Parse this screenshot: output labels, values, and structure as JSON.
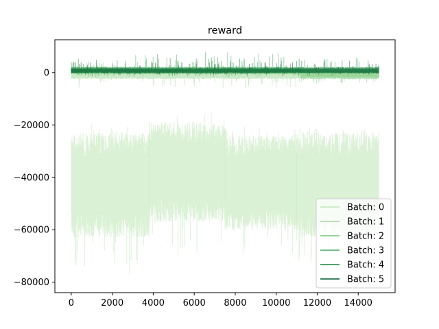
{
  "chart_data": {
    "type": "line",
    "title": "reward",
    "xlabel": "",
    "ylabel": "",
    "xlim": [
      -800,
      15800
    ],
    "ylim": [
      -84000,
      12500
    ],
    "x_ticks": [
      0,
      2000,
      4000,
      6000,
      8000,
      10000,
      12000,
      14000
    ],
    "x_tick_labels": [
      "0",
      "2000",
      "4000",
      "6000",
      "8000",
      "10000",
      "12000",
      "14000"
    ],
    "y_ticks": [
      0,
      -20000,
      -40000,
      -60000,
      -80000
    ],
    "y_tick_labels": [
      "0",
      "−20000",
      "−40000",
      "−60000",
      "−80000"
    ],
    "grid": false,
    "legend_placement": "lower-right",
    "x_range": [
      0,
      15000
    ],
    "series": [
      {
        "name": "Batch: 0",
        "color": "#c7e9c0",
        "opacity": 0.65,
        "band_segments": [
          {
            "x": [
              0,
              3800
            ],
            "upper": -23000,
            "lower": -63000,
            "spike_max": -19000,
            "spike_min": -79500
          },
          {
            "x": [
              3800,
              7500
            ],
            "upper": -19000,
            "lower": -57000,
            "spike_max": -15000,
            "spike_min": -72000
          },
          {
            "x": [
              7500,
              11000
            ],
            "upper": -24000,
            "lower": -60000,
            "spike_max": -20000,
            "spike_min": -70000
          },
          {
            "x": [
              11000,
              15000
            ],
            "upper": -23000,
            "lower": -63000,
            "spike_max": -20000,
            "spike_min": -77000
          }
        ]
      },
      {
        "name": "Batch: 1",
        "color": "#a1d99b",
        "opacity": 0.55,
        "band_segments": [
          {
            "x": [
              0,
              11200
            ],
            "upper": 800,
            "lower": -2500,
            "spike_max": 2500,
            "spike_min": -6000
          },
          {
            "x": [
              11200,
              15000
            ],
            "upper": 500,
            "lower": -2000,
            "spike_max": 2000,
            "spike_min": -4500
          }
        ]
      },
      {
        "name": "Batch: 2",
        "color": "#74c476",
        "opacity": 0.55,
        "band_segments": [
          {
            "x": [
              0,
              11200
            ],
            "upper": 1800,
            "lower": -700,
            "spike_max": 4500,
            "spike_min": -2000
          },
          {
            "x": [
              11200,
              15000
            ],
            "upper": 600,
            "lower": -2600,
            "spike_max": 2500,
            "spike_min": -4500
          }
        ]
      },
      {
        "name": "Batch: 3",
        "color": "#41ab5d",
        "opacity": 0.55,
        "band_segments": [
          {
            "x": [
              0,
              15000
            ],
            "upper": 2200,
            "lower": -400,
            "spike_max": 7800,
            "spike_min": -1500
          }
        ]
      },
      {
        "name": "Batch: 4",
        "color": "#238b45",
        "opacity": 0.6,
        "band_segments": [
          {
            "x": [
              0,
              15000
            ],
            "upper": 2000,
            "lower": -300,
            "spike_max": 6000,
            "spike_min": -1200
          }
        ]
      },
      {
        "name": "Batch: 5",
        "color": "#005a32",
        "opacity": 0.55,
        "band_segments": [
          {
            "x": [
              0,
              15000
            ],
            "upper": 1500,
            "lower": -200,
            "spike_max": 4000,
            "spike_min": -800
          }
        ]
      }
    ]
  }
}
